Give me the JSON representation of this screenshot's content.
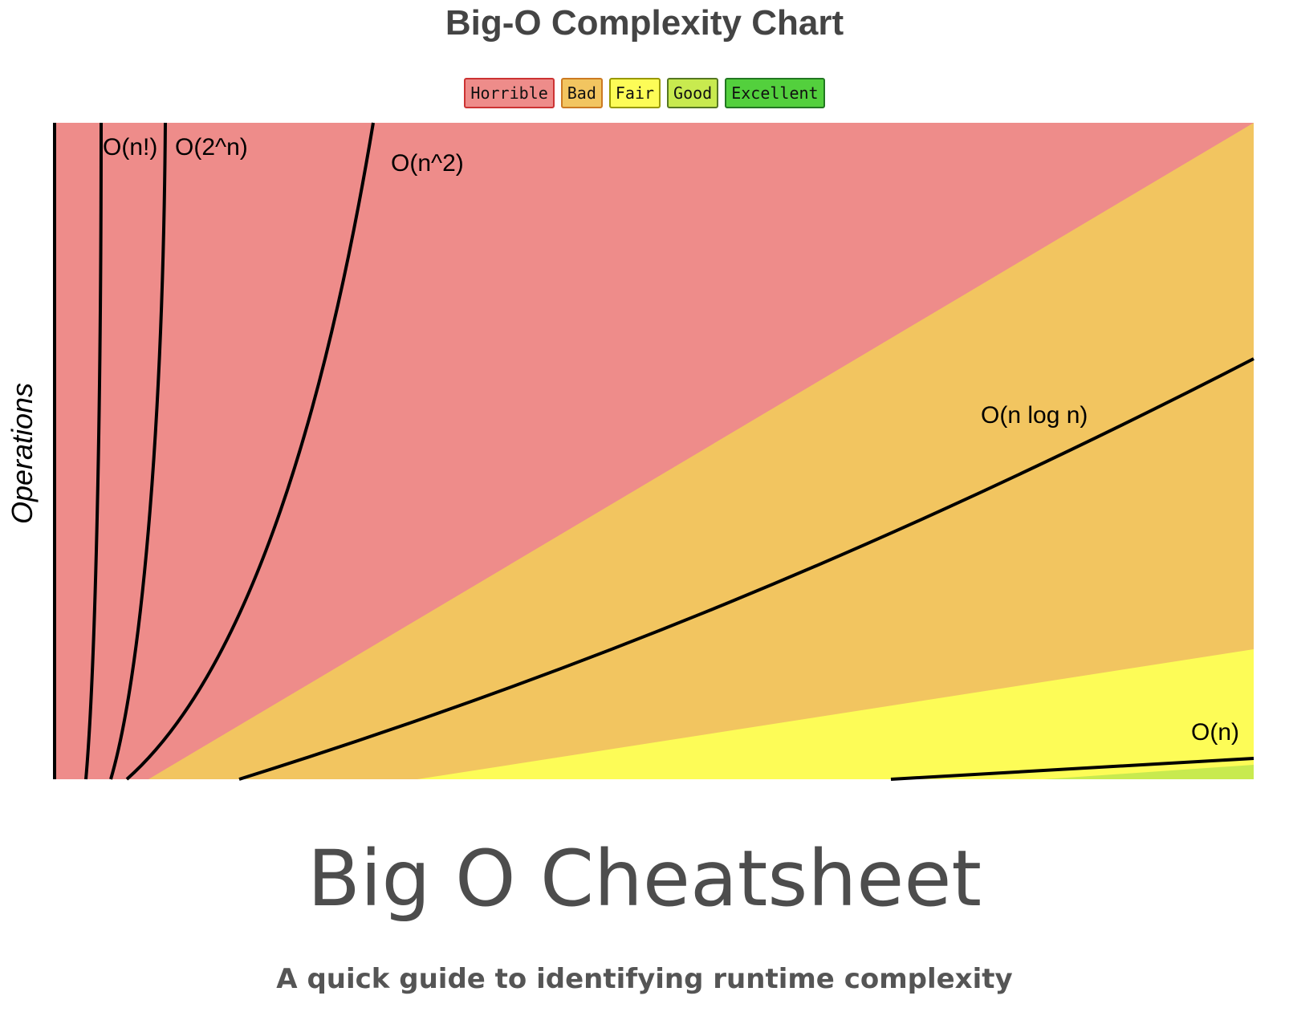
{
  "chart_data": {
    "type": "line",
    "title": "Big-O Complexity Chart",
    "ylabel": "Operations",
    "xlabel": "",
    "legend": {
      "placement": "top-center",
      "items": [
        {
          "label": "Horrible",
          "color": "#ee8c8a",
          "border": "#cc3333"
        },
        {
          "label": "Bad",
          "color": "#f2c560",
          "border": "#cc7a22"
        },
        {
          "label": "Fair",
          "color": "#fdfc57",
          "border": "#999900"
        },
        {
          "label": "Good",
          "color": "#c8ea4f",
          "border": "#557722"
        },
        {
          "label": "Excellent",
          "color": "#53d03d",
          "border": "#227722"
        }
      ]
    },
    "regions": [
      {
        "name": "Horrible",
        "color": "#ee8c8a"
      },
      {
        "name": "Bad",
        "color": "#f2c560"
      },
      {
        "name": "Fair",
        "color": "#fdfc57"
      },
      {
        "name": "Good",
        "color": "#c8ea4f"
      }
    ],
    "series": [
      {
        "name": "O(n!)"
      },
      {
        "name": "O(2^n)"
      },
      {
        "name": "O(n^2)"
      },
      {
        "name": "O(n log n)"
      },
      {
        "name": "O(n)"
      }
    ],
    "grid": false
  },
  "page": {
    "heading": "Big O Cheatsheet",
    "subtitle": "A quick guide to identifying runtime complexity"
  }
}
